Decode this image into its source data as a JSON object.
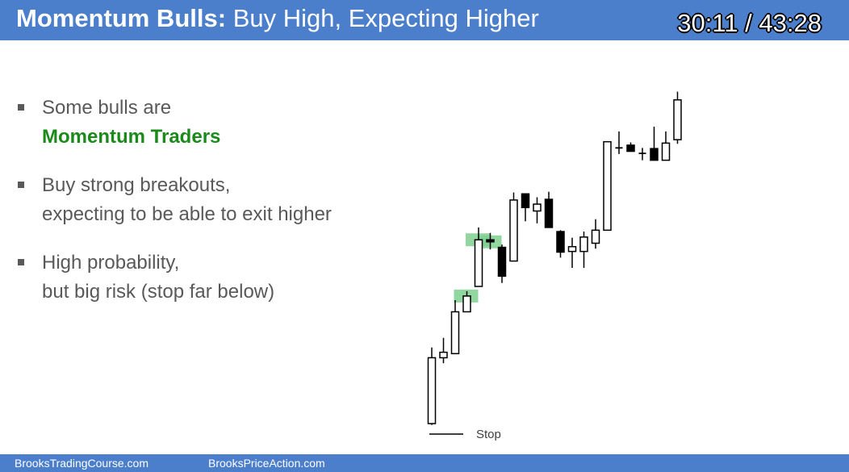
{
  "header": {
    "title_bold": "Momentum Bulls:",
    "title_rest": "Buy High, Expecting Higher",
    "timer": "30:11 / 43:28"
  },
  "bullets": [
    {
      "lines": [
        "Some bulls are"
      ],
      "highlight": "Momentum Traders"
    },
    {
      "lines": [
        "Buy strong breakouts,",
        "expecting to be able to exit higher"
      ]
    },
    {
      "lines": [
        "High probability,",
        "but big risk (stop far below)"
      ]
    }
  ],
  "chart_data": {
    "type": "candlestick",
    "stop_label": "Stop",
    "colors": {
      "bull": "#ffffff",
      "bear": "#000000",
      "outline": "#000000",
      "highlight": "#7fcf8f"
    },
    "candles": [
      {
        "o": 0.0,
        "c": 9.6,
        "h": 11.1,
        "l": -0.2,
        "dir": "bull"
      },
      {
        "o": 9.6,
        "c": 10.4,
        "h": 12.5,
        "l": 8.8,
        "dir": "bull"
      },
      {
        "o": 10.2,
        "c": 16.3,
        "h": 18.0,
        "l": 10.2,
        "dir": "bull"
      },
      {
        "o": 16.3,
        "c": 18.6,
        "h": 19.3,
        "l": 16.3,
        "dir": "bull"
      },
      {
        "o": 20.0,
        "c": 26.8,
        "h": 28.6,
        "l": 20.0,
        "dir": "bull"
      },
      {
        "o": 26.8,
        "c": 26.5,
        "h": 27.8,
        "l": 25.4,
        "dir": "bear"
      },
      {
        "o": 25.7,
        "c": 21.5,
        "h": 26.1,
        "l": 20.5,
        "dir": "bear"
      },
      {
        "o": 23.7,
        "c": 32.6,
        "h": 33.7,
        "l": 23.7,
        "dir": "bull"
      },
      {
        "o": 33.5,
        "c": 31.5,
        "h": 33.5,
        "l": 29.5,
        "dir": "bear"
      },
      {
        "o": 31.0,
        "c": 32.0,
        "h": 33.0,
        "l": 29.2,
        "dir": "bull"
      },
      {
        "o": 32.7,
        "c": 28.6,
        "h": 33.8,
        "l": 28.6,
        "dir": "bear"
      },
      {
        "o": 28.0,
        "c": 25.0,
        "h": 28.2,
        "l": 24.2,
        "dir": "bear"
      },
      {
        "o": 25.1,
        "c": 25.8,
        "h": 27.1,
        "l": 22.7,
        "dir": "bull"
      },
      {
        "o": 25.1,
        "c": 27.2,
        "h": 28.0,
        "l": 22.7,
        "dir": "bull"
      },
      {
        "o": 26.3,
        "c": 28.2,
        "h": 29.8,
        "l": 25.5,
        "dir": "bull"
      },
      {
        "o": 28.2,
        "c": 41.1,
        "h": 41.1,
        "l": 28.2,
        "dir": "bull"
      },
      {
        "o": 40.2,
        "c": 40.2,
        "h": 42.6,
        "l": 39.3,
        "dir": "bull"
      },
      {
        "o": 40.6,
        "c": 39.7,
        "h": 41.0,
        "l": 39.7,
        "dir": "bear"
      },
      {
        "o": 39.4,
        "c": 39.4,
        "h": 40.2,
        "l": 38.4,
        "dir": "bull"
      },
      {
        "o": 40.1,
        "c": 38.4,
        "h": 43.3,
        "l": 38.4,
        "dir": "bear"
      },
      {
        "o": 38.4,
        "c": 40.9,
        "h": 42.6,
        "l": 38.4,
        "dir": "bull"
      },
      {
        "o": 41.4,
        "c": 47.2,
        "h": 48.4,
        "l": 40.8,
        "dir": "bull"
      }
    ],
    "highlighted_candles": [
      3,
      4,
      5
    ],
    "stop_level": -1.0
  }
}
